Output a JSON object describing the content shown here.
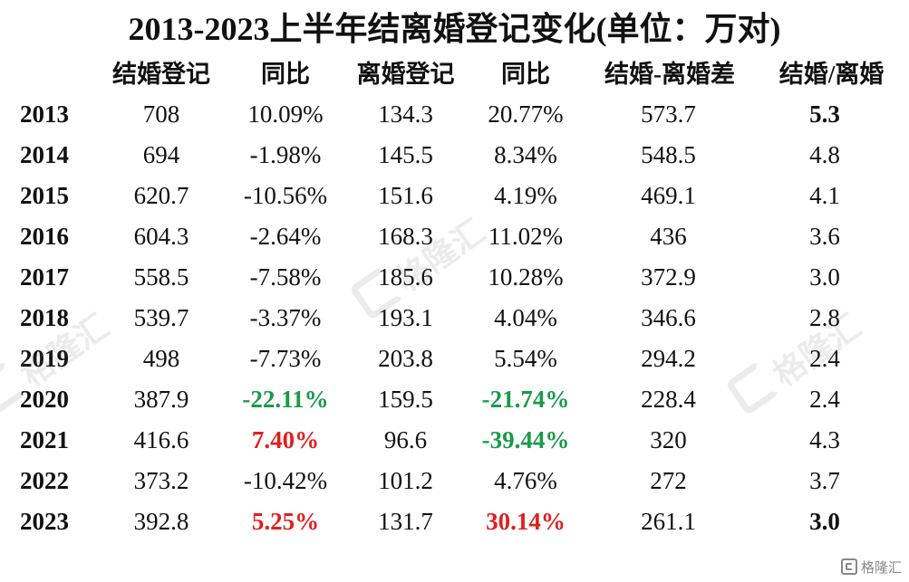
{
  "title": "2013-2023上半年结离婚登记变化(单位：万对)",
  "headers": [
    "结婚登记",
    "同比",
    "离婚登记",
    "同比",
    "结婚-离婚差",
    "结婚/离婚"
  ],
  "rows": [
    {
      "year": "2013",
      "marriage": "708",
      "marriage_yoy": "10.09%",
      "divorce": "134.3",
      "divorce_yoy": "20.77%",
      "diff": "573.7",
      "ratio": "5.3"
    },
    {
      "year": "2014",
      "marriage": "694",
      "marriage_yoy": "-1.98%",
      "divorce": "145.5",
      "divorce_yoy": "8.34%",
      "diff": "548.5",
      "ratio": "4.8"
    },
    {
      "year": "2015",
      "marriage": "620.7",
      "marriage_yoy": "-10.56%",
      "divorce": "151.6",
      "divorce_yoy": "4.19%",
      "diff": "469.1",
      "ratio": "4.1"
    },
    {
      "year": "2016",
      "marriage": "604.3",
      "marriage_yoy": "-2.64%",
      "divorce": "168.3",
      "divorce_yoy": "11.02%",
      "diff": "436",
      "ratio": "3.6"
    },
    {
      "year": "2017",
      "marriage": "558.5",
      "marriage_yoy": "-7.58%",
      "divorce": "185.6",
      "divorce_yoy": "10.28%",
      "diff": "372.9",
      "ratio": "3.0"
    },
    {
      "year": "2018",
      "marriage": "539.7",
      "marriage_yoy": "-3.37%",
      "divorce": "193.1",
      "divorce_yoy": "4.04%",
      "diff": "346.6",
      "ratio": "2.8"
    },
    {
      "year": "2019",
      "marriage": "498",
      "marriage_yoy": "-7.73%",
      "divorce": "203.8",
      "divorce_yoy": "5.54%",
      "diff": "294.2",
      "ratio": "2.4"
    },
    {
      "year": "2020",
      "marriage": "387.9",
      "marriage_yoy": "-22.11%",
      "divorce": "159.5",
      "divorce_yoy": "-21.74%",
      "diff": "228.4",
      "ratio": "2.4"
    },
    {
      "year": "2021",
      "marriage": "416.6",
      "marriage_yoy": "7.40%",
      "divorce": "96.6",
      "divorce_yoy": "-39.44%",
      "diff": "320",
      "ratio": "4.3"
    },
    {
      "year": "2022",
      "marriage": "373.2",
      "marriage_yoy": "-10.42%",
      "divorce": "101.2",
      "divorce_yoy": "4.76%",
      "diff": "272",
      "ratio": "3.7"
    },
    {
      "year": "2023",
      "marriage": "392.8",
      "marriage_yoy": "5.25%",
      "divorce": "131.7",
      "divorce_yoy": "30.14%",
      "diff": "261.1",
      "ratio": "3.0"
    }
  ],
  "highlights": {
    "green_color": "#1a9a4a",
    "red_color": "#e0201e",
    "marriage_yoy": {
      "2020": "green",
      "2021": "red",
      "2023": "red"
    },
    "divorce_yoy": {
      "2020": "green",
      "2021": "green",
      "2023": "red"
    },
    "ratio_bold": [
      "2013",
      "2023"
    ]
  },
  "watermark": {
    "text": "格隆汇",
    "icon": "gelonghui-logo-icon"
  },
  "logo": {
    "text": "格隆汇",
    "icon": "gelonghui-logo-icon"
  }
}
